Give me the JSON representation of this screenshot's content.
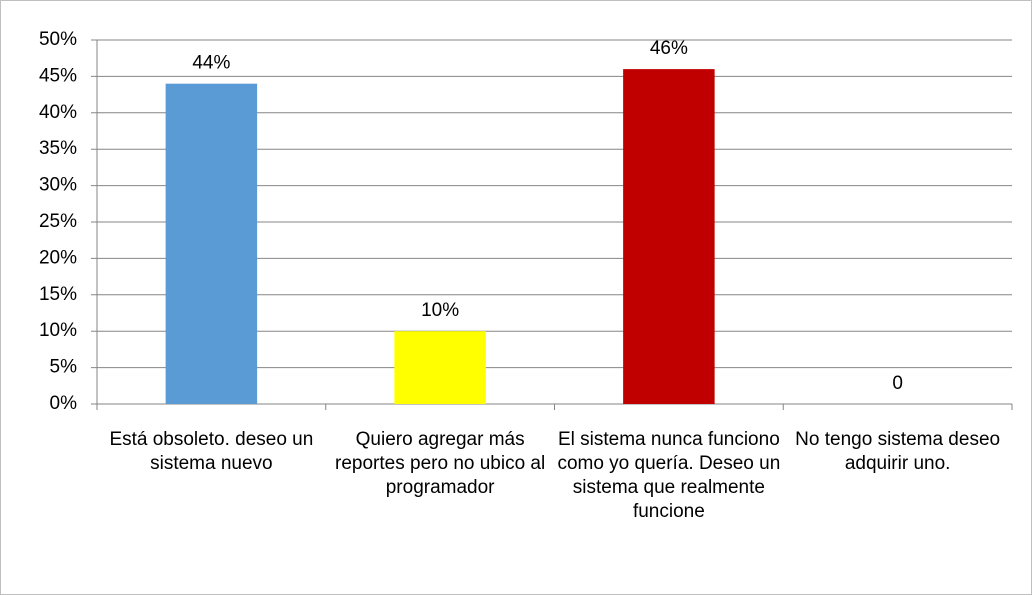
{
  "chart_data": {
    "type": "bar",
    "categories": [
      "Está obsoleto. deseo un sistema nuevo",
      "Quiero agregar más reportes pero no ubico al programador",
      "El sistema nunca funciono como yo quería. Deseo un sistema que realmente funcione",
      "No tengo sistema deseo adquirir uno."
    ],
    "values": [
      44,
      10,
      46,
      0
    ],
    "value_labels": [
      "44%",
      "10%",
      "46%",
      "0"
    ],
    "colors": [
      "#5b9bd5",
      "#ffff00",
      "#c00000",
      null
    ],
    "ylim": [
      0,
      50
    ],
    "yticks": [
      {
        "value": 0,
        "label": "0%"
      },
      {
        "value": 5,
        "label": "5%"
      },
      {
        "value": 10,
        "label": "10%"
      },
      {
        "value": 15,
        "label": "15%"
      },
      {
        "value": 20,
        "label": "20%"
      },
      {
        "value": 25,
        "label": "25%"
      },
      {
        "value": 30,
        "label": "30%"
      },
      {
        "value": 35,
        "label": "35%"
      },
      {
        "value": 40,
        "label": "40%"
      },
      {
        "value": 45,
        "label": "45%"
      },
      {
        "value": 50,
        "label": "50%"
      }
    ],
    "grid": true
  }
}
